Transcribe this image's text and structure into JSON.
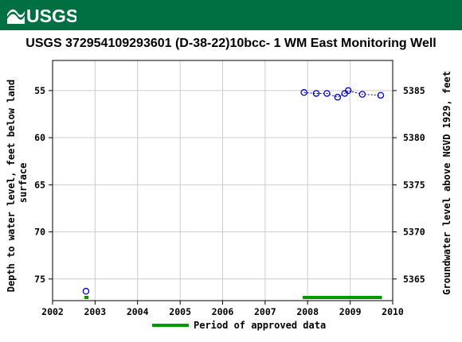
{
  "banner": {
    "logo_text": "USGS",
    "color": "#006f41"
  },
  "chart_data": {
    "type": "scatter",
    "title": "USGS 372954109293601  (D-38-22)10bcc- 1 WM East Monitoring Well",
    "ylabel_left": [
      "Depth to water level, feet below land",
      "surface"
    ],
    "ylabel_right": "Groundwater level above NGVD 1929, feet",
    "xlim": [
      "2002-01-01",
      "2010-01-01"
    ],
    "ylim_left": [
      77.3,
      51.8
    ],
    "ylim_right": [
      5362.7,
      5388.2
    ],
    "x_ticks": [
      "2002",
      "2003",
      "2004",
      "2005",
      "2006",
      "2007",
      "2008",
      "2009",
      "2010"
    ],
    "y_ticks_left": [
      55,
      60,
      65,
      70,
      75
    ],
    "y_ticks_right": [
      5385,
      5380,
      5375,
      5370,
      5365
    ],
    "grid": true,
    "series": [
      {
        "marker_color": "#0000cc",
        "points": [
          {
            "date": "2002-10-15",
            "depth": 76.3
          },
          {
            "date": "2007-12-01",
            "depth": 55.2
          },
          {
            "date": "2008-03-15",
            "depth": 55.3
          },
          {
            "date": "2008-06-15",
            "depth": 55.3
          },
          {
            "date": "2008-09-15",
            "depth": 55.7
          },
          {
            "date": "2008-11-15",
            "depth": 55.3
          },
          {
            "date": "2008-12-15",
            "depth": 55.0
          },
          {
            "date": "2009-04-15",
            "depth": 55.4
          },
          {
            "date": "2009-09-20",
            "depth": 55.5
          }
        ]
      }
    ],
    "approved_periods": [
      {
        "start": "2002-10-01",
        "end": "2002-11-05"
      },
      {
        "start": "2007-11-20",
        "end": "2009-10-01"
      }
    ],
    "approved_color": "#009900",
    "legend": {
      "label": "Period of approved data",
      "placement": "bottom-center"
    }
  }
}
